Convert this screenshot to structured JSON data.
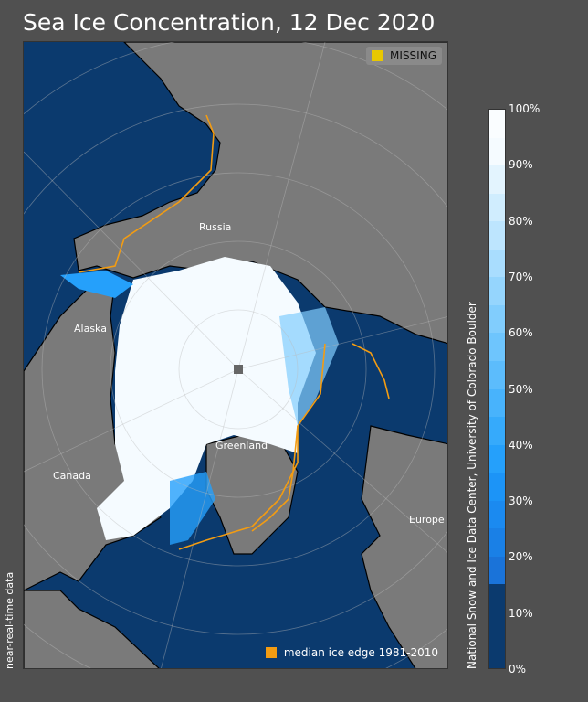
{
  "title": "Sea Ice Concentration, 12 Dec 2020",
  "legend": {
    "missing_label": "MISSING",
    "missing_color": "#e8c800",
    "median_label": "median ice edge 1981-2010",
    "median_color": "#f39c12"
  },
  "map_labels": {
    "russia": "Russia",
    "alaska": "Alaska",
    "canada": "Canada",
    "greenland": "Greenland",
    "europe": "Europe"
  },
  "footer_left": "near-real-time data",
  "credit": "National Snow and Ice Data Center, University of Colorado Boulder",
  "colorbar": {
    "ticks": [
      "0%",
      "10%",
      "20%",
      "30%",
      "40%",
      "50%",
      "60%",
      "70%",
      "80%",
      "90%",
      "100%"
    ],
    "colors": [
      "#0b3a6e",
      "#0b3a6e",
      "#0b3a6e",
      "#1a73d9",
      "#1a80e6",
      "#1b8af0",
      "#1c94f7",
      "#25a0fb",
      "#36aafb",
      "#48b3fc",
      "#5cbcfc",
      "#6ec5fd",
      "#81cdfd",
      "#95d5fd",
      "#a9ddfe",
      "#bde5fe",
      "#d0edfe",
      "#e3f4fe",
      "#f5fbff",
      "#fafdff"
    ],
    "colors_ocean": "#0b3a6e",
    "colors_land": "#7a7a7a"
  }
}
